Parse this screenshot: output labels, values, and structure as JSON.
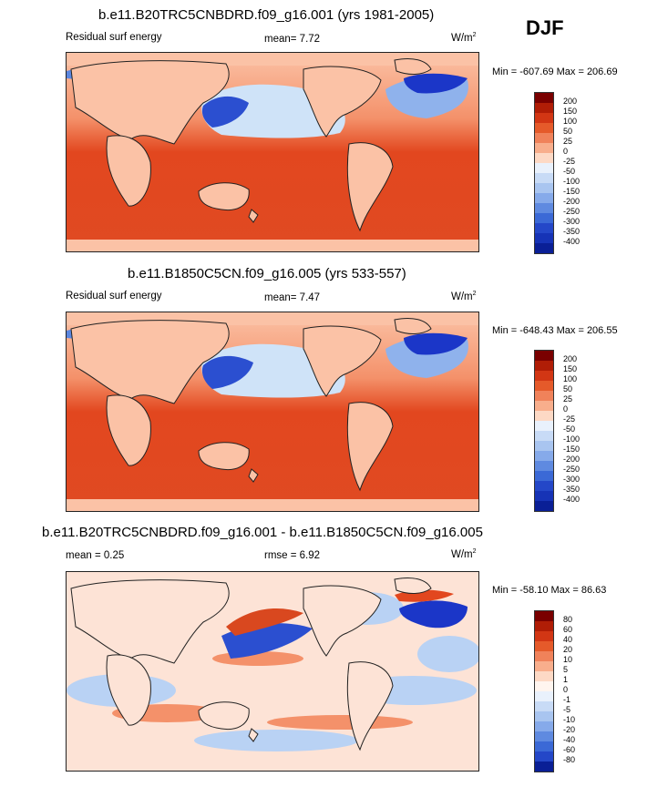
{
  "season": "DJF",
  "colors": {
    "ocean_warm": "#e2471f",
    "ocean_mid": "#f4916a",
    "land": "#fbc2a6",
    "cool_light": "#cfe3f8",
    "cool_mid": "#5b87e0",
    "cool_dark": "#1b36c8"
  },
  "panels": [
    {
      "title": "b.e11.B20TRC5CNBDRD.f09_g16.001 (yrs 1981-2005)",
      "left_label": "Residual surf energy",
      "center_label": "mean=  7.72",
      "units": "W/m",
      "units_sup": "2",
      "minmax": "Min = -607.69 Max = 206.69",
      "levels": [
        "200",
        "150",
        "100",
        "50",
        "25",
        "0",
        "-25",
        "-50",
        "-100",
        "-150",
        "-200",
        "-250",
        "-300",
        "-350",
        "-400"
      ],
      "bar_colors": [
        "#7a0000",
        "#b01d06",
        "#d23614",
        "#e55a2a",
        "#f0825a",
        "#f8ae8c",
        "#fdd9c5",
        "#e9f1fc",
        "#c8dbf6",
        "#a9c5f0",
        "#86aaea",
        "#5f8ae0",
        "#3b69d6",
        "#2447c8",
        "#1633b6",
        "#0a1f96"
      ]
    },
    {
      "title": "b.e11.B1850C5CN.f09_g16.005 (yrs 533-557)",
      "left_label": "Residual surf energy",
      "center_label": "mean=  7.47",
      "units": "W/m",
      "units_sup": "2",
      "minmax": "Min = -648.43 Max = 206.55",
      "levels": [
        "200",
        "150",
        "100",
        "50",
        "25",
        "0",
        "-25",
        "-50",
        "-100",
        "-150",
        "-200",
        "-250",
        "-300",
        "-350",
        "-400"
      ],
      "bar_colors": [
        "#7a0000",
        "#b01d06",
        "#d23614",
        "#e55a2a",
        "#f0825a",
        "#f8ae8c",
        "#fdd9c5",
        "#e9f1fc",
        "#c8dbf6",
        "#a9c5f0",
        "#86aaea",
        "#5f8ae0",
        "#3b69d6",
        "#2447c8",
        "#1633b6",
        "#0a1f96"
      ]
    },
    {
      "title": "b.e11.B20TRC5CNBDRD.f09_g16.001 - b.e11.B1850C5CN.f09_g16.005",
      "left_label": "mean =  0.25",
      "center_label": "rmse =  6.92",
      "units": "W/m",
      "units_sup": "2",
      "minmax": "Min = -58.10 Max = 86.63",
      "levels": [
        "80",
        "60",
        "40",
        "20",
        "10",
        "5",
        "1",
        "0",
        "-1",
        "-5",
        "-10",
        "-20",
        "-40",
        "-60",
        "-80"
      ],
      "bar_colors": [
        "#7a0000",
        "#b01d06",
        "#d23614",
        "#e55a2a",
        "#f0825a",
        "#f8ae8c",
        "#fdd9c5",
        "#fff5ef",
        "#e9f1fc",
        "#c8dbf6",
        "#a9c5f0",
        "#86aaea",
        "#5f8ae0",
        "#3b69d6",
        "#2447c8",
        "#0a1f96"
      ]
    }
  ]
}
